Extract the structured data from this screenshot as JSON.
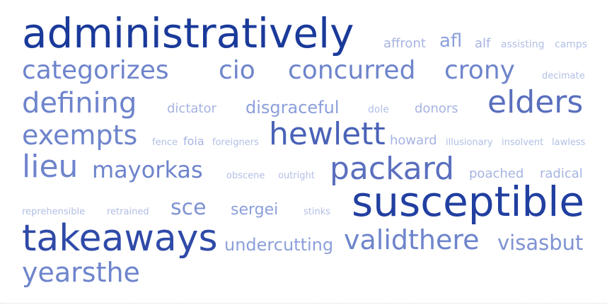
{
  "words": [
    {
      "text": "administratively",
      "color": "#1a3a9a"
    },
    {
      "text": "affront",
      "color": "#a6b4e2"
    },
    {
      "text": "afl",
      "color": "#8c9fda"
    },
    {
      "text": "alf",
      "color": "#a6b4e2"
    },
    {
      "text": "assisting",
      "color": "#b2bfe6"
    },
    {
      "text": "camps",
      "color": "#b2bfe6"
    },
    {
      "text": "categorizes",
      "color": "#6e84cc"
    },
    {
      "text": "cio",
      "color": "#6e84cc"
    },
    {
      "text": "concurred",
      "color": "#6e84cc"
    },
    {
      "text": "crony",
      "color": "#6e84cc"
    },
    {
      "text": "decimate",
      "color": "#b2bfe6"
    },
    {
      "text": "defining",
      "color": "#6e84cc"
    },
    {
      "text": "dictator",
      "color": "#a6b4e2"
    },
    {
      "text": "disgraceful",
      "color": "#8c9fda"
    },
    {
      "text": "dole",
      "color": "#b2bfe6"
    },
    {
      "text": "donors",
      "color": "#a6b4e2"
    },
    {
      "text": "elders",
      "color": "#5a6fbe"
    },
    {
      "text": "exempts",
      "color": "#6e84cc"
    },
    {
      "text": "fence",
      "color": "#b2bfe6"
    },
    {
      "text": "foia",
      "color": "#a6b4e2"
    },
    {
      "text": "foreigners",
      "color": "#b2bfe6"
    },
    {
      "text": "hewlett",
      "color": "#4a63b8"
    },
    {
      "text": "howard",
      "color": "#a6b4e2"
    },
    {
      "text": "illusionary",
      "color": "#b2bfe6"
    },
    {
      "text": "insolvent",
      "color": "#b2bfe6"
    },
    {
      "text": "lawless",
      "color": "#b2bfe6"
    },
    {
      "text": "lieu",
      "color": "#6e84cc"
    },
    {
      "text": "mayorkas",
      "color": "#6e84cc"
    },
    {
      "text": "obscene",
      "color": "#b2bfe6"
    },
    {
      "text": "outright",
      "color": "#b2bfe6"
    },
    {
      "text": "packard",
      "color": "#5a6fbe"
    },
    {
      "text": "poached",
      "color": "#a6b4e2"
    },
    {
      "text": "radical",
      "color": "#a6b4e2"
    },
    {
      "text": "reprehensible",
      "color": "#b2bfe6"
    },
    {
      "text": "retrained",
      "color": "#b2bfe6"
    },
    {
      "text": "sce",
      "color": "#7f93d2"
    },
    {
      "text": "sergei",
      "color": "#8c9fda"
    },
    {
      "text": "stinks",
      "color": "#b2bfe6"
    },
    {
      "text": "susceptible",
      "color": "#213fa0"
    },
    {
      "text": "takeaways",
      "color": "#2f4aa8"
    },
    {
      "text": "undercutting",
      "color": "#8c9fda"
    },
    {
      "text": "validthere",
      "color": "#6e84cc"
    },
    {
      "text": "visasbut",
      "color": "#7f93d2"
    },
    {
      "text": "yearsthe",
      "color": "#6e84cc"
    }
  ]
}
